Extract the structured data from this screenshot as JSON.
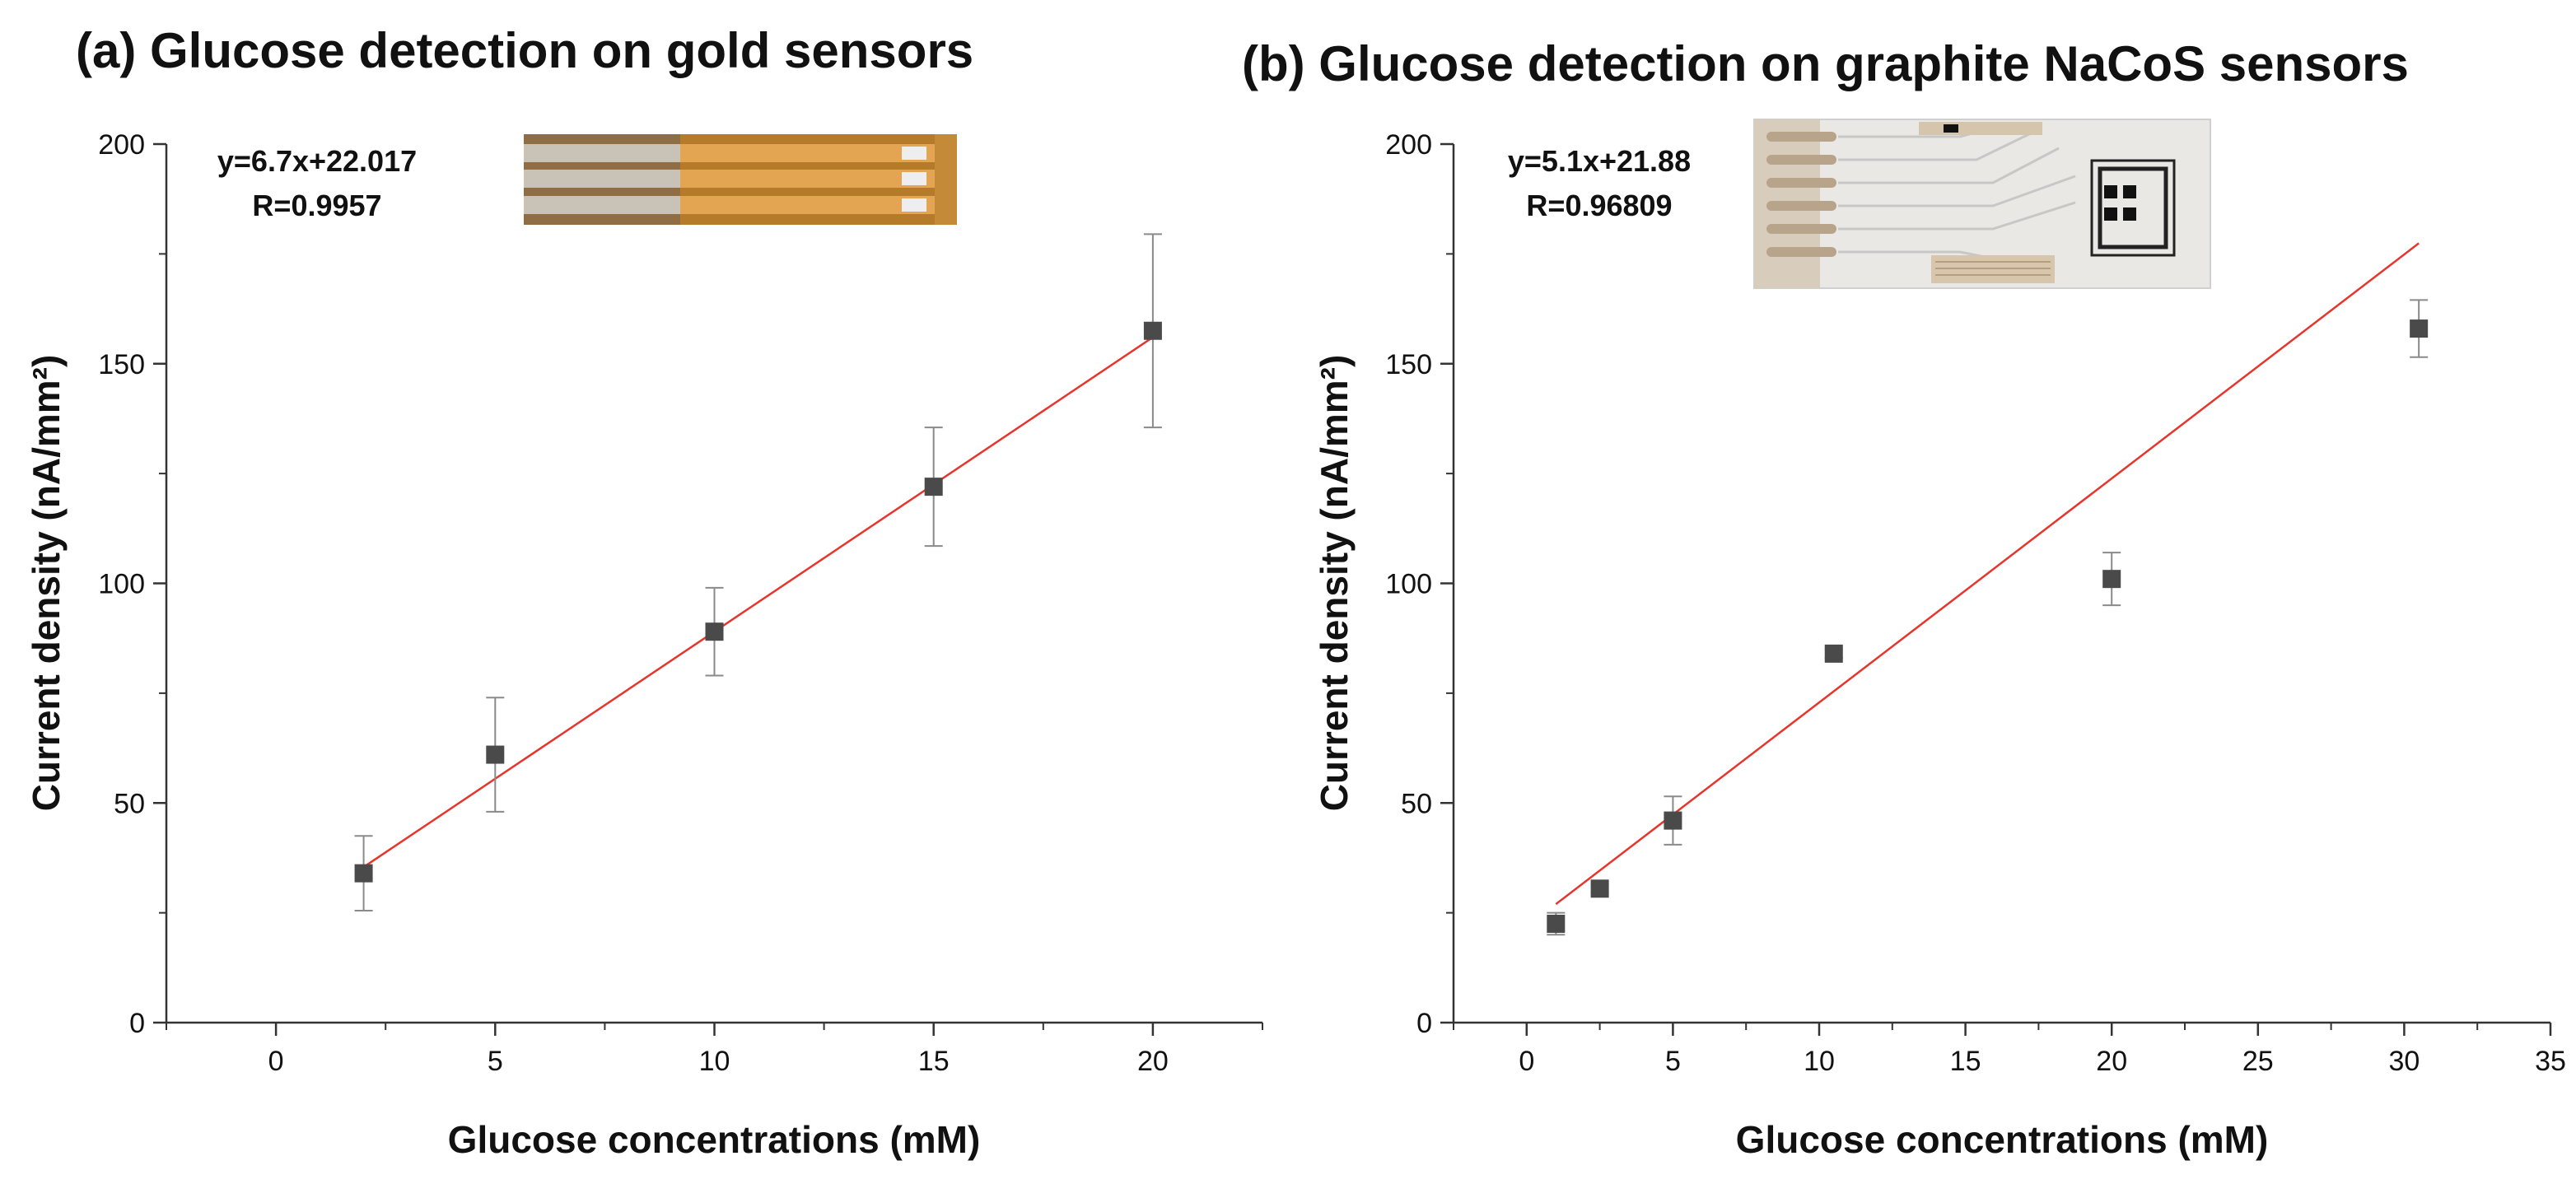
{
  "chart_data": [
    {
      "type": "scatter",
      "title": "(a) Glucose detection on gold sensors",
      "xlabel": "Glucose concentrations (mM)",
      "ylabel": "Current density (nA/mm²)",
      "xlim": [
        -2.5,
        22.5
      ],
      "ylim": [
        0,
        200
      ],
      "xticks": [
        0,
        5,
        10,
        15,
        20
      ],
      "yticks": [
        0,
        50,
        100,
        150,
        200
      ],
      "x": [
        2,
        5,
        10,
        15,
        20
      ],
      "y": [
        34,
        61,
        89,
        122,
        157.5
      ],
      "yerr": [
        8.5,
        13,
        10,
        13.5,
        22
      ],
      "fit": {
        "slope": 6.7,
        "intercept": 22.017,
        "x_range": [
          2,
          20
        ]
      },
      "equation": "y=6.7x+22.017",
      "r_value": "R=0.9957",
      "inset": "gold-sensor-photo",
      "marker_color": "#4a4a4a",
      "fit_color": "#e8352c",
      "errorbar_color": "#8a8a8a"
    },
    {
      "type": "scatter",
      "title": "(b) Glucose detection on graphite NaCoS sensors",
      "xlabel": "Glucose concentrations (mM)",
      "ylabel": "Current density (nA/mm²)",
      "xlim": [
        -2.5,
        35
      ],
      "ylim": [
        0,
        200
      ],
      "xticks": [
        0,
        5,
        10,
        15,
        20,
        25,
        30,
        35
      ],
      "yticks": [
        0,
        50,
        100,
        150,
        200
      ],
      "x": [
        1,
        2.5,
        5,
        10.5,
        20,
        30.5
      ],
      "y": [
        22.5,
        30.5,
        46,
        84,
        101,
        158
      ],
      "yerr": [
        2.5,
        1,
        5.5,
        1,
        6,
        6.5
      ],
      "fit": {
        "slope": 5.1,
        "intercept": 21.88,
        "x_range": [
          1,
          30.5
        ]
      },
      "equation": "y=5.1x+21.88",
      "r_value": "R=0.96809",
      "inset": "graphite-sensor-photo",
      "marker_color": "#4a4a4a",
      "fit_color": "#e8352c",
      "errorbar_color": "#8a8a8a"
    }
  ]
}
